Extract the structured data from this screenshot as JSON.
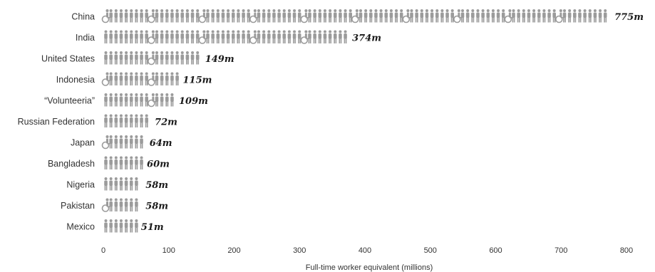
{
  "chart_data": {
    "type": "bar",
    "title": "",
    "xlabel": "Full-time worker equivalent (millions)",
    "ylabel": "",
    "orientation": "horizontal",
    "mark_style": "pictogram-people",
    "xlim": [
      0,
      800
    ],
    "xticks": [
      0,
      100,
      200,
      300,
      400,
      500,
      600,
      700,
      800
    ],
    "categories": [
      "China",
      "India",
      "United States",
      "Indonesia",
      "“Volunteeria”",
      "Russian Federation",
      "Japan",
      "Bangladesh",
      "Nigeria",
      "Pakistan",
      "Mexico"
    ],
    "values": [
      775,
      374,
      149,
      115,
      109,
      72,
      64,
      60,
      58,
      58,
      51
    ],
    "value_labels": [
      "775m",
      "374m",
      "149m",
      "115m",
      "109m",
      "72m",
      "64m",
      "60m",
      "58m",
      "58m",
      "51m"
    ],
    "colors": {
      "icon": "#9b9b9b",
      "text": "#333333"
    }
  }
}
